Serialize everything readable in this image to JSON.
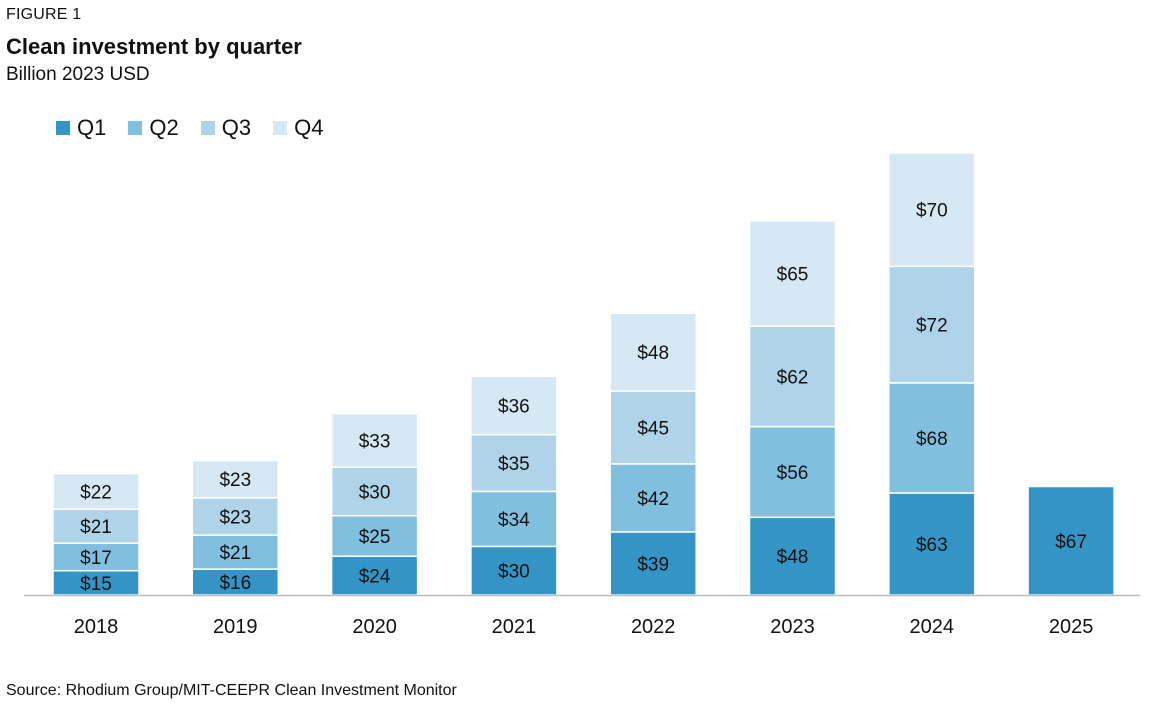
{
  "header": {
    "figure_label": "FIGURE 1",
    "title": "Clean investment by quarter",
    "subtitle": "Billion 2023 USD"
  },
  "footer": {
    "source": "Source: Rhodium Group/MIT-CEEPR Clean Investment Monitor"
  },
  "colors": {
    "Q1": "#3494c6",
    "Q2": "#81bfdf",
    "Q3": "#afd4ea",
    "Q4": "#d5e8f4",
    "axis": "#bbbbbb"
  },
  "chart_data": {
    "type": "bar",
    "stacked": true,
    "title": "Clean investment by quarter",
    "subtitle": "Billion 2023 USD",
    "xlabel": "",
    "ylabel": "",
    "legend_position": "top-left",
    "grid": false,
    "categories": [
      "2018",
      "2019",
      "2020",
      "2021",
      "2022",
      "2023",
      "2024",
      "2025"
    ],
    "ylim": [
      0,
      273
    ],
    "series": [
      {
        "name": "Q1",
        "values": [
          15,
          16,
          24,
          30,
          39,
          48,
          63,
          67
        ],
        "labels": [
          "$15",
          "$16",
          "$24",
          "$30",
          "$39",
          "$48",
          "$63",
          "$67"
        ]
      },
      {
        "name": "Q2",
        "values": [
          17,
          21,
          25,
          34,
          42,
          56,
          68,
          null
        ],
        "labels": [
          "$17",
          "$21",
          "$25",
          "$34",
          "$42",
          "$56",
          "$68",
          null
        ]
      },
      {
        "name": "Q3",
        "values": [
          21,
          23,
          30,
          35,
          45,
          62,
          72,
          null
        ],
        "labels": [
          "$21",
          "$23",
          "$30",
          "$35",
          "$45",
          "$62",
          "$72",
          null
        ]
      },
      {
        "name": "Q4",
        "values": [
          22,
          23,
          33,
          36,
          48,
          65,
          70,
          null
        ],
        "labels": [
          "$22",
          "$23",
          "$33",
          "$36",
          "$48",
          "$65",
          "$70",
          null
        ]
      }
    ]
  }
}
